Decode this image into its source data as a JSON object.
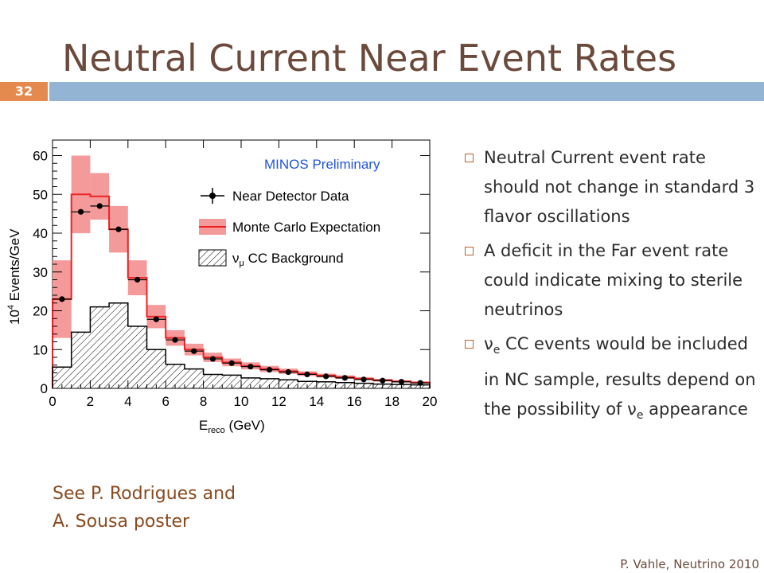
{
  "slide": {
    "title": "Neutral Current Near Event Rates",
    "number": "32",
    "footer": "P. Vahle, Neutrino 2010",
    "poster_line1": "See P. Rodrigues and",
    "poster_line2": "A. Sousa poster",
    "colors": {
      "title": "#6b4a3b",
      "bar": "#93b5d3",
      "badge": "#e58a4e",
      "poster": "#8b4a1e"
    }
  },
  "bullets": [
    {
      "text": "Neutral Current event rate should not change in standard 3 flavor oscillations"
    },
    {
      "text": "A deficit in the Far event rate could indicate mixing to sterile neutrinos"
    },
    {
      "prefix": "ν",
      "sub": "e",
      "text": " CC events would be included in NC sample, results depend on the possibility of ",
      "sym": "ν",
      "sub2": "e",
      "tail": " appearance"
    }
  ],
  "chart_data": {
    "type": "bar",
    "annotation": "MINOS Preliminary",
    "xlabel": "E",
    "xlabel_sub": "reco",
    "xlabel_unit": " (GeV)",
    "ylabel": "10",
    "ylabel_sup": "4",
    "ylabel_rest": " Events/GeV",
    "xlim": [
      0,
      20
    ],
    "ylim": [
      0,
      64
    ],
    "xticks": [
      "0",
      "2",
      "4",
      "6",
      "8",
      "10",
      "12",
      "14",
      "16",
      "18",
      "20"
    ],
    "yticks": [
      "0",
      "10",
      "20",
      "30",
      "40",
      "50",
      "60"
    ],
    "legend_position": "top-right",
    "legend": [
      {
        "name": "Near Detector Data"
      },
      {
        "name": "Monte Carlo Expectation"
      },
      {
        "name_prefix": "ν",
        "name_sub": "μ",
        "name": " CC Background"
      }
    ],
    "bin_edges": [
      0,
      1,
      2,
      3,
      4,
      5,
      6,
      7,
      8,
      9,
      10,
      11,
      12,
      13,
      14,
      15,
      16,
      17,
      18,
      19,
      20
    ],
    "data": [
      23,
      45.5,
      47,
      41,
      28,
      17.8,
      12.5,
      9.6,
      7.6,
      6.5,
      5.6,
      4.8,
      4.2,
      3.6,
      3.1,
      2.7,
      2.3,
      2.0,
      1.7,
      1.4
    ],
    "mc": [
      23,
      50,
      49.5,
      41,
      28.5,
      18.5,
      13,
      10,
      8,
      6.7,
      5.8,
      5,
      4.4,
      3.8,
      3.3,
      2.9,
      2.5,
      2.1,
      1.8,
      1.5
    ],
    "mc_err": [
      10,
      10,
      6,
      6,
      4.5,
      3,
      2,
      1.5,
      1.2,
      1,
      0.9,
      0.8,
      0.7,
      0.6,
      0.5,
      0.45,
      0.4,
      0.35,
      0.3,
      0.3
    ],
    "background": [
      5.5,
      14.5,
      21,
      22,
      16,
      10,
      6.2,
      5,
      3.6,
      3.4,
      2.7,
      2.5,
      2.2,
      1.8,
      1.7,
      1.5,
      1.3,
      1.1,
      1.0,
      0.9
    ],
    "colors": {
      "data": "#000000",
      "mc": "#ee2222",
      "mc_band": "#f49a9a",
      "annotation": "#2255dd"
    }
  }
}
